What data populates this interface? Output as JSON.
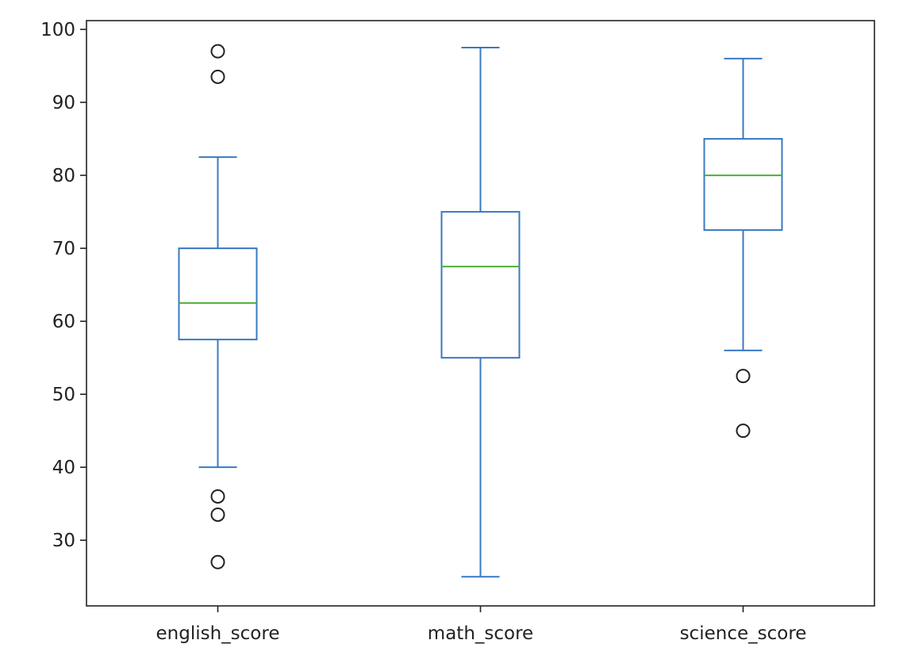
{
  "chart_data": {
    "type": "box",
    "title": "",
    "xlabel": "",
    "ylabel": "",
    "ylim": [
      21,
      101.2
    ],
    "yticks": [
      30,
      40,
      50,
      60,
      70,
      80,
      90,
      100
    ],
    "grid": false,
    "legend": "none",
    "categories": [
      "english_score",
      "math_score",
      "science_score"
    ],
    "boxes": [
      {
        "name": "english_score",
        "whisker_low": 40,
        "q1": 57.5,
        "median": 62.5,
        "q3": 70,
        "whisker_high": 82.5,
        "outliers": [
          97,
          93.5,
          36,
          33.5,
          27
        ]
      },
      {
        "name": "math_score",
        "whisker_low": 25,
        "q1": 55,
        "median": 67.5,
        "q3": 75,
        "whisker_high": 97.5,
        "outliers": []
      },
      {
        "name": "science_score",
        "whisker_low": 56,
        "q1": 72.5,
        "median": 80,
        "q3": 85,
        "whisker_high": 96,
        "outliers": [
          52.5,
          45
        ]
      }
    ],
    "colors": {
      "box": "#3a78c2",
      "median": "#4caf3a",
      "outlier": "#222222",
      "axis": "#222222"
    }
  }
}
